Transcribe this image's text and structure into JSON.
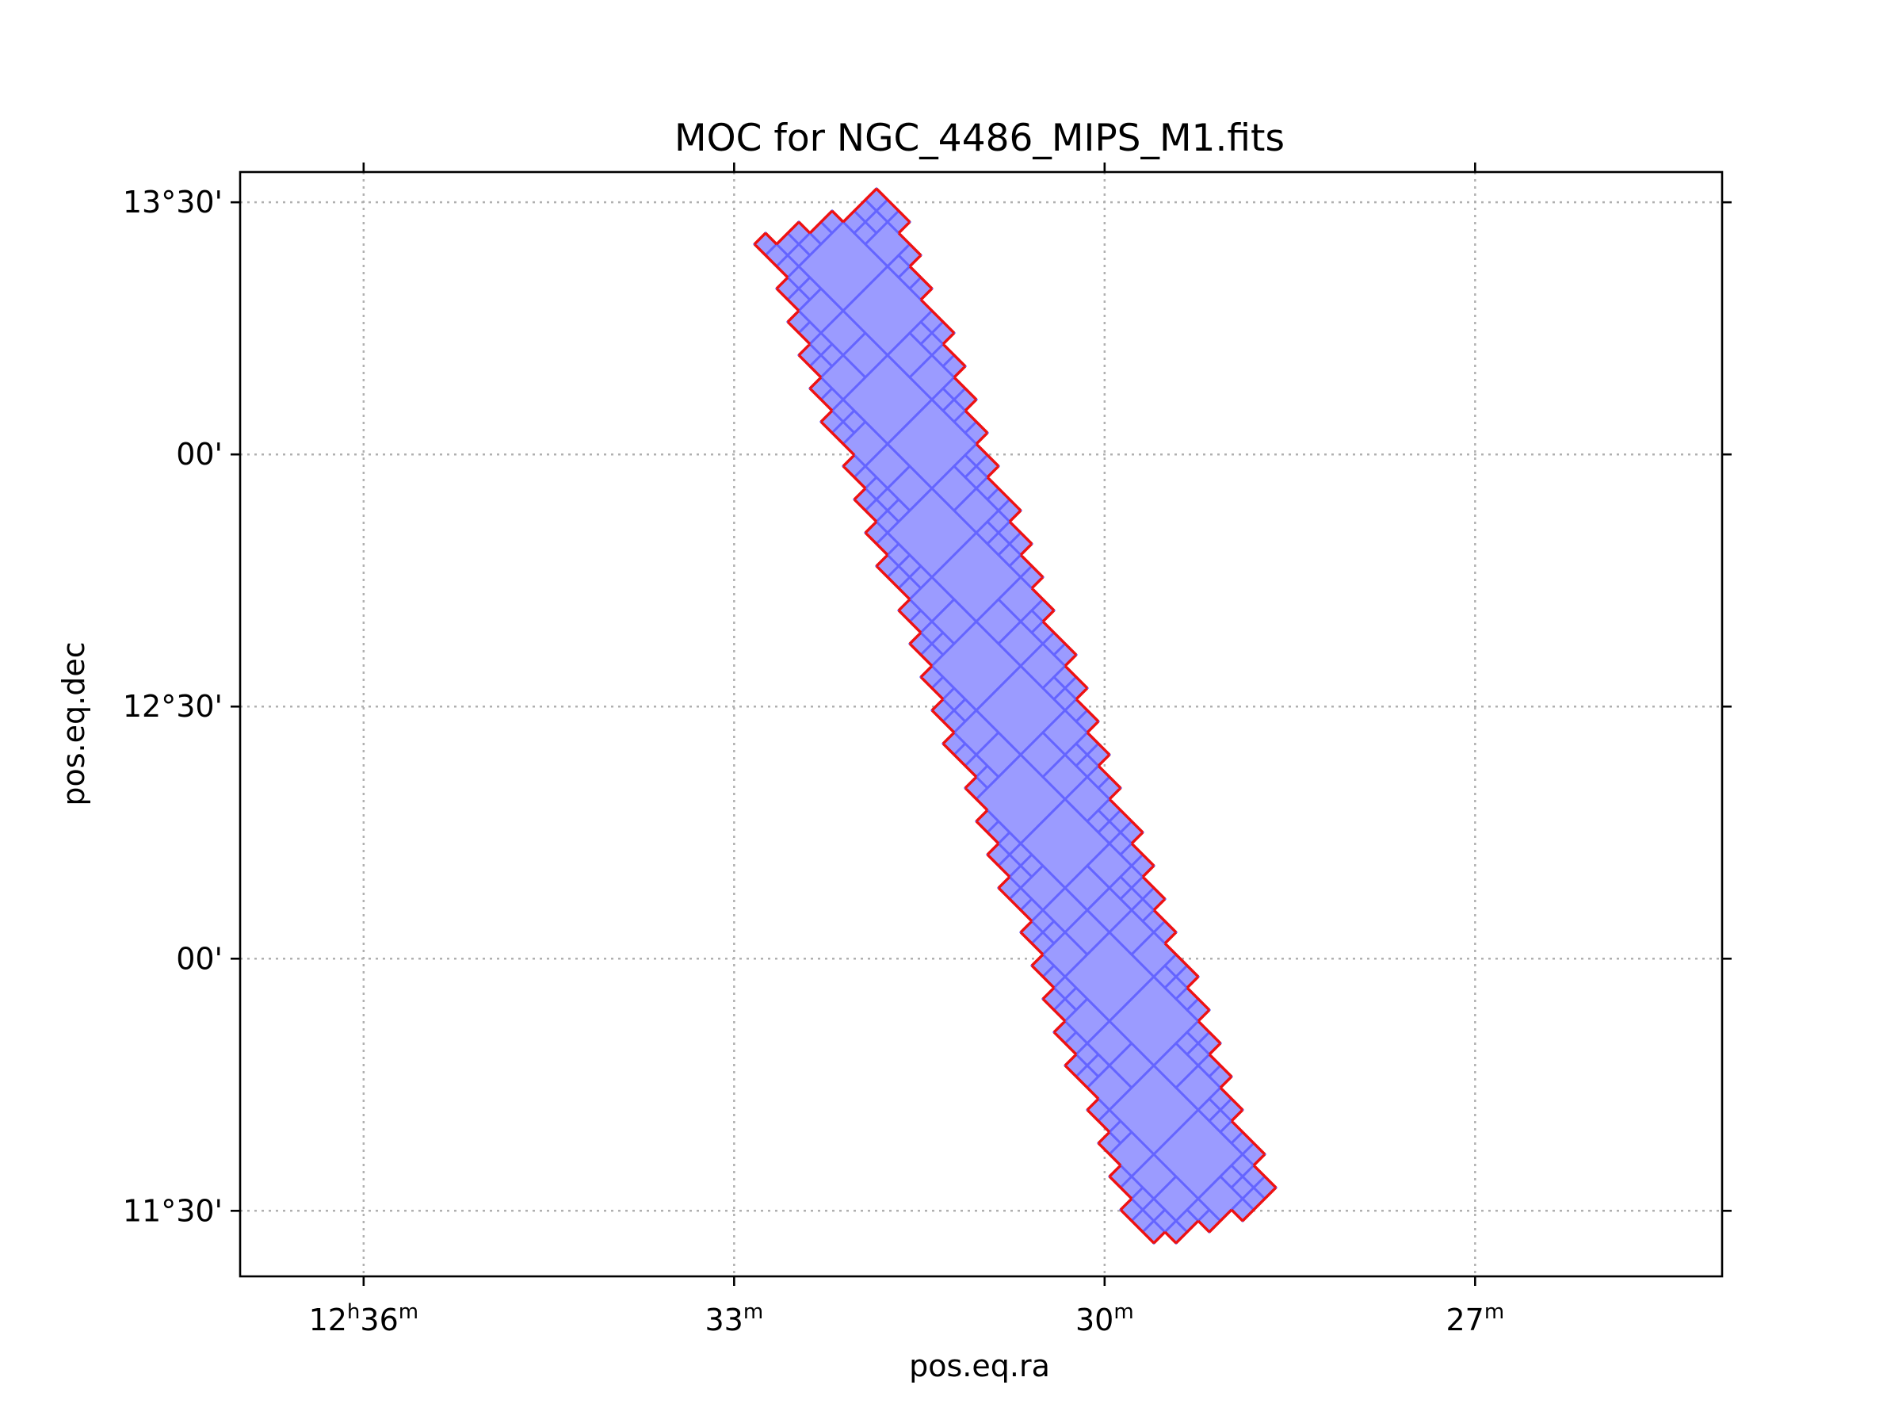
{
  "chart_data": {
    "type": "sky-coverage-map",
    "title": "MOC for NGC_4486_MIPS_M1.fits",
    "xlabel": "pos.eq.ra",
    "ylabel": "pos.eq.dec",
    "grid": true,
    "x_ticks": [
      {
        "value_min": 36,
        "label_main": "12",
        "label_sup1": "h",
        "label_mid": "36",
        "label_sup2": "m"
      },
      {
        "value_min": 33,
        "label_main": "",
        "label_sup1": "",
        "label_mid": "33",
        "label_sup2": "m"
      },
      {
        "value_min": 30,
        "label_main": "",
        "label_sup1": "",
        "label_mid": "30",
        "label_sup2": "m"
      },
      {
        "value_min": 27,
        "label_main": "",
        "label_sup1": "",
        "label_mid": "27",
        "label_sup2": "m"
      }
    ],
    "y_ticks": [
      {
        "value_deg": 13.5,
        "label": "13°30'"
      },
      {
        "value_deg": 13.0,
        "label": "00'"
      },
      {
        "value_deg": 12.5,
        "label": "12°30'"
      },
      {
        "value_deg": 12.0,
        "label": "00'"
      },
      {
        "value_deg": 11.5,
        "label": "11°30'"
      }
    ],
    "ra_range_min": [
      37.0,
      25.0
    ],
    "dec_range_deg": [
      11.37,
      13.56
    ],
    "strip": {
      "start": {
        "ra_min": 32.2,
        "dec_deg": 13.44
      },
      "end": {
        "ra_min": 29.2,
        "dec_deg": 11.5
      },
      "width_min": 1.1
    },
    "colors": {
      "fill": "#9b9bff",
      "cell_edge": "#6464ff",
      "outline": "#ee1111"
    }
  }
}
